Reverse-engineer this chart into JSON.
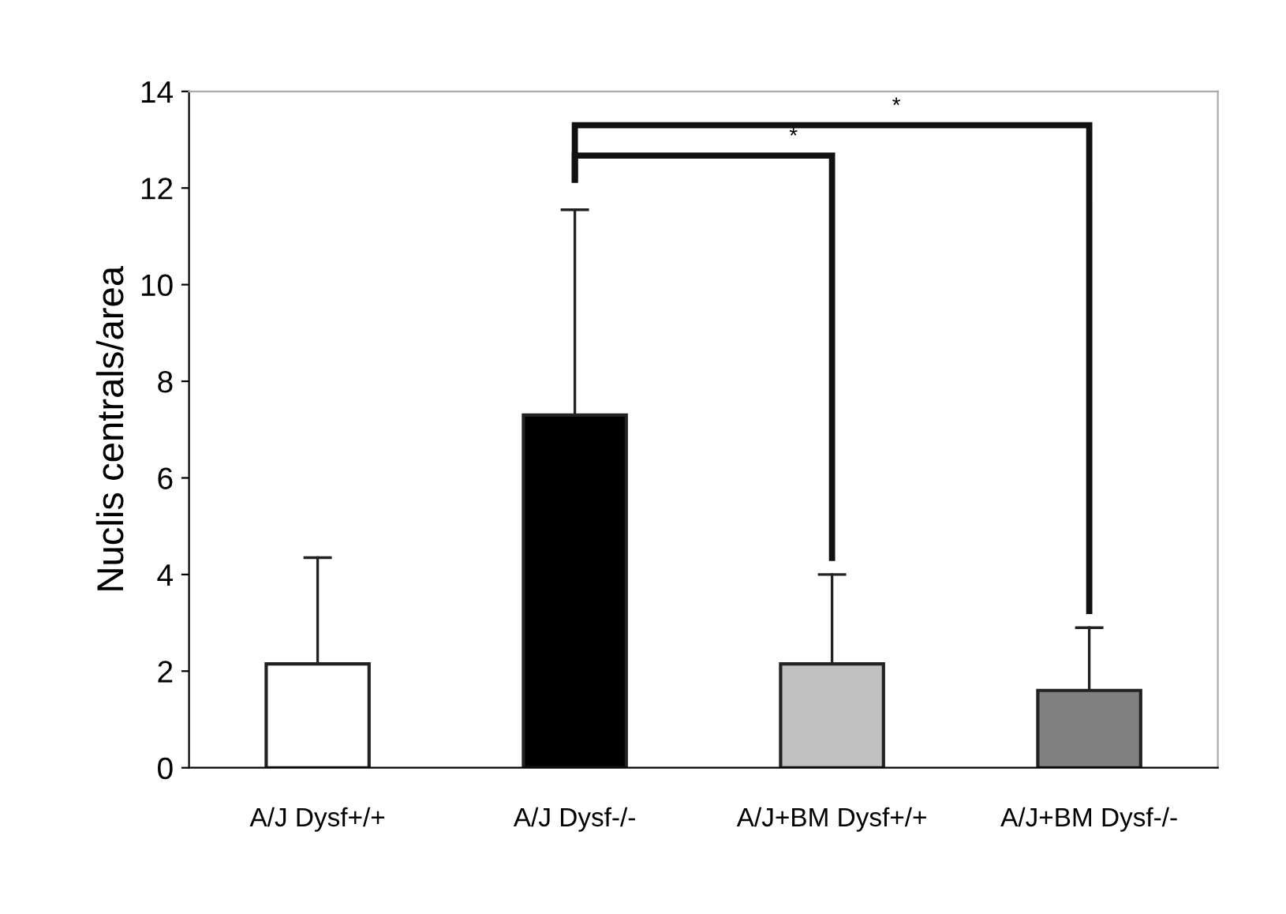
{
  "chart_data": {
    "type": "bar",
    "ylabel": "Nuclis centrals/area",
    "categories": [
      "A/J Dysf+/+",
      "A/J Dysf-/-",
      "A/J+BM Dysf+/+",
      "A/J+BM Dysf-/-"
    ],
    "values": [
      2.15,
      7.3,
      2.15,
      1.6
    ],
    "colors": [
      "#ffffff",
      "#000000",
      "#c0c0c0",
      "#808080"
    ],
    "errors": [
      [
        2.15,
        4.35
      ],
      [
        7.3,
        11.55
      ],
      [
        2.15,
        4.0
      ],
      [
        1.6,
        2.9
      ]
    ],
    "ylim": [
      0,
      14
    ],
    "yticks": [
      0,
      2,
      4,
      6,
      8,
      10,
      12,
      14
    ],
    "grid": false,
    "legend": false,
    "annotations": [
      "*",
      "*"
    ]
  }
}
